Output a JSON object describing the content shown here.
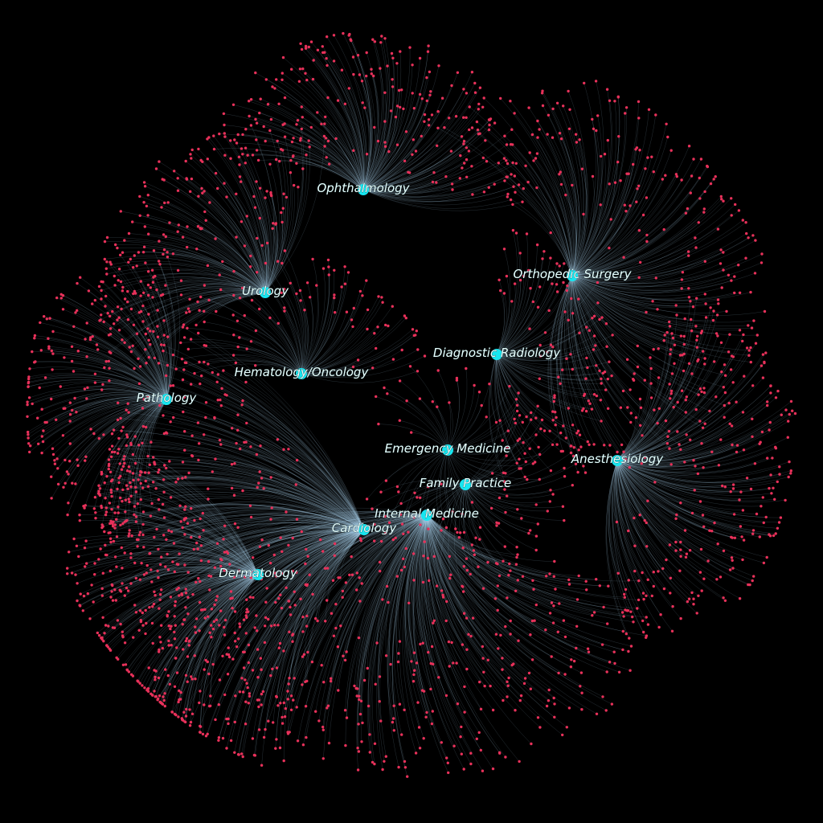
{
  "diagram": {
    "type": "network",
    "background_color": "#000000",
    "hub_color": "#17e6f0",
    "leaf_color": "#e8315a",
    "edge_color": "#a9d4ee",
    "hubs": [
      {
        "id": "ophthalmology",
        "label": "Ophthalmology"
      },
      {
        "id": "orthopedic-surgery",
        "label": "Orthopedic Surgery"
      },
      {
        "id": "urology",
        "label": "Urology"
      },
      {
        "id": "diagnostic-radiology",
        "label": "Diagnostic Radiology"
      },
      {
        "id": "hematology-oncology",
        "label": "Hematology/Oncology"
      },
      {
        "id": "pathology",
        "label": "Pathology"
      },
      {
        "id": "emergency-medicine",
        "label": "Emergency Medicine"
      },
      {
        "id": "anesthesiology",
        "label": "Anesthesiology"
      },
      {
        "id": "family-practice",
        "label": "Family Practice"
      },
      {
        "id": "internal-medicine",
        "label": "Internal Medicine"
      },
      {
        "id": "cardiology",
        "label": "Cardiology"
      },
      {
        "id": "dermatology",
        "label": "Dermatology"
      }
    ]
  }
}
